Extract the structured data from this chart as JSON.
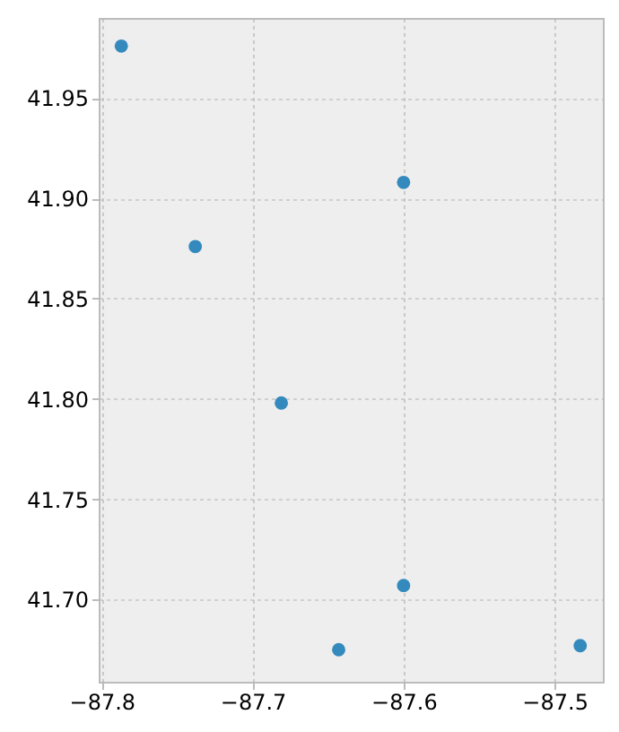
{
  "chart_data": {
    "type": "scatter",
    "x": [
      -87.787,
      -87.6,
      -87.738,
      -87.681,
      -87.6,
      -87.643,
      -87.483
    ],
    "values": [
      41.976,
      41.908,
      41.876,
      41.798,
      41.707,
      41.675,
      41.677
    ],
    "color": "#348abd",
    "xlim": [
      -87.802,
      -87.468
    ],
    "ylim": [
      41.659,
      41.99
    ],
    "xticks": [
      {
        "value": -87.8,
        "label": "−87.8"
      },
      {
        "value": -87.7,
        "label": "−87.7"
      },
      {
        "value": -87.6,
        "label": "−87.6"
      },
      {
        "value": -87.5,
        "label": "−87.5"
      }
    ],
    "yticks": [
      {
        "value": 41.7,
        "label": "41.70"
      },
      41.75,
      {
        "value": 41.8,
        "label": "41.80"
      },
      41.85,
      {
        "value": 41.9,
        "label": "41.90"
      },
      41.95
    ],
    "grid": true,
    "marker": "circle"
  }
}
